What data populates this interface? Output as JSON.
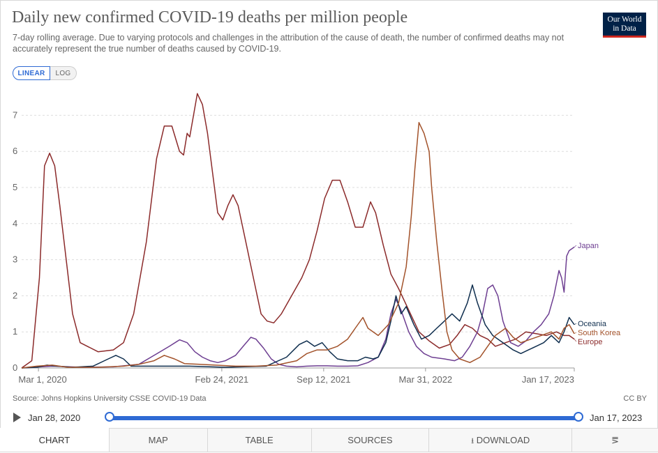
{
  "header": {
    "title": "Daily new confirmed COVID-19 deaths per million people",
    "subtitle": "7-day rolling average. Due to varying protocols and challenges in the attribution of the cause of death, the number of confirmed deaths may not accurately represent the true number of deaths caused by COVID-19.",
    "logo_line1": "Our World",
    "logo_line2": "in Data"
  },
  "scale_toggle": {
    "linear": "LINEAR",
    "log": "LOG"
  },
  "footer": {
    "source": "Source: Johns Hopkins University CSSE COVID-19 Data",
    "license": "CC BY"
  },
  "timeline": {
    "start": "Jan 28, 2020",
    "end": "Jan 17, 2023"
  },
  "tabs": [
    "CHART",
    "MAP",
    "TABLE",
    "SOURCES",
    "DOWNLOAD",
    "share"
  ],
  "colors": {
    "europe": "#8b2a2a",
    "japan": "#6d3e91",
    "oceania": "#0f2e4e",
    "south_korea": "#a2522a",
    "accent": "#2e6ad4"
  },
  "chart_data": {
    "type": "line",
    "title": "Daily new confirmed COVID-19 deaths per million people",
    "ylim": [
      0,
      7.5
    ],
    "yticks": [
      "0",
      "1",
      "2",
      "3",
      "4",
      "5",
      "6",
      "7"
    ],
    "x_range_days": [
      0,
      1085
    ],
    "xticks": [
      {
        "label": "Mar 1, 2020",
        "day": 33
      },
      {
        "label": "Feb 24, 2021",
        "day": 393
      },
      {
        "label": "Sep 12, 2021",
        "day": 593
      },
      {
        "label": "Mar 31, 2022",
        "day": 793
      },
      {
        "label": "Jan 17, 2023",
        "day": 1085
      }
    ],
    "series": [
      {
        "name": "Europe",
        "color": "#8b2a2a",
        "points": [
          [
            0,
            0
          ],
          [
            20,
            0.2
          ],
          [
            35,
            2.5
          ],
          [
            45,
            5.6
          ],
          [
            55,
            5.95
          ],
          [
            65,
            5.6
          ],
          [
            75,
            4.5
          ],
          [
            90,
            2.7
          ],
          [
            100,
            1.5
          ],
          [
            115,
            0.7
          ],
          [
            150,
            0.45
          ],
          [
            180,
            0.5
          ],
          [
            200,
            0.7
          ],
          [
            220,
            1.5
          ],
          [
            245,
            3.5
          ],
          [
            265,
            5.8
          ],
          [
            280,
            6.7
          ],
          [
            295,
            6.7
          ],
          [
            310,
            6.0
          ],
          [
            318,
            5.9
          ],
          [
            325,
            6.5
          ],
          [
            330,
            6.4
          ],
          [
            345,
            7.6
          ],
          [
            355,
            7.3
          ],
          [
            365,
            6.5
          ],
          [
            375,
            5.4
          ],
          [
            385,
            4.3
          ],
          [
            395,
            4.1
          ],
          [
            405,
            4.5
          ],
          [
            415,
            4.8
          ],
          [
            425,
            4.5
          ],
          [
            440,
            3.5
          ],
          [
            455,
            2.5
          ],
          [
            470,
            1.5
          ],
          [
            482,
            1.3
          ],
          [
            495,
            1.25
          ],
          [
            510,
            1.5
          ],
          [
            530,
            2.0
          ],
          [
            550,
            2.5
          ],
          [
            565,
            3.0
          ],
          [
            580,
            3.8
          ],
          [
            595,
            4.7
          ],
          [
            610,
            5.2
          ],
          [
            625,
            5.2
          ],
          [
            640,
            4.6
          ],
          [
            655,
            3.9
          ],
          [
            670,
            3.9
          ],
          [
            685,
            4.6
          ],
          [
            695,
            4.3
          ],
          [
            710,
            3.4
          ],
          [
            725,
            2.6
          ],
          [
            740,
            2.2
          ],
          [
            760,
            1.6
          ],
          [
            780,
            1.0
          ],
          [
            800,
            0.75
          ],
          [
            820,
            0.55
          ],
          [
            840,
            0.65
          ],
          [
            855,
            0.9
          ],
          [
            870,
            1.2
          ],
          [
            885,
            1.1
          ],
          [
            900,
            0.9
          ],
          [
            915,
            0.8
          ],
          [
            930,
            0.6
          ],
          [
            950,
            0.7
          ],
          [
            970,
            0.8
          ],
          [
            990,
            1.0
          ],
          [
            1010,
            0.95
          ],
          [
            1030,
            0.9
          ],
          [
            1050,
            1.0
          ],
          [
            1065,
            0.9
          ],
          [
            1075,
            0.9
          ],
          [
            1085,
            0.8
          ]
        ]
      },
      {
        "name": "Japan",
        "color": "#6d3e91",
        "points": [
          [
            0,
            0
          ],
          [
            60,
            0.05
          ],
          [
            120,
            0.02
          ],
          [
            180,
            0.03
          ],
          [
            230,
            0.1
          ],
          [
            260,
            0.35
          ],
          [
            290,
            0.6
          ],
          [
            310,
            0.78
          ],
          [
            325,
            0.7
          ],
          [
            340,
            0.45
          ],
          [
            355,
            0.3
          ],
          [
            370,
            0.2
          ],
          [
            385,
            0.15
          ],
          [
            400,
            0.2
          ],
          [
            420,
            0.35
          ],
          [
            435,
            0.6
          ],
          [
            450,
            0.85
          ],
          [
            460,
            0.8
          ],
          [
            475,
            0.55
          ],
          [
            490,
            0.25
          ],
          [
            505,
            0.1
          ],
          [
            520,
            0.05
          ],
          [
            540,
            0.03
          ],
          [
            560,
            0.05
          ],
          [
            580,
            0.06
          ],
          [
            600,
            0.06
          ],
          [
            620,
            0.05
          ],
          [
            640,
            0.05
          ],
          [
            660,
            0.06
          ],
          [
            680,
            0.15
          ],
          [
            700,
            0.3
          ],
          [
            715,
            0.8
          ],
          [
            725,
            1.5
          ],
          [
            735,
            1.9
          ],
          [
            745,
            1.6
          ],
          [
            760,
            1.0
          ],
          [
            775,
            0.6
          ],
          [
            790,
            0.4
          ],
          [
            805,
            0.3
          ],
          [
            830,
            0.25
          ],
          [
            850,
            0.2
          ],
          [
            865,
            0.3
          ],
          [
            880,
            0.6
          ],
          [
            895,
            1.0
          ],
          [
            905,
            1.5
          ],
          [
            915,
            2.2
          ],
          [
            925,
            2.3
          ],
          [
            935,
            2.0
          ],
          [
            945,
            1.3
          ],
          [
            960,
            0.7
          ],
          [
            975,
            0.6
          ],
          [
            990,
            0.75
          ],
          [
            1005,
            1.0
          ],
          [
            1020,
            1.2
          ],
          [
            1035,
            1.5
          ],
          [
            1045,
            2.0
          ],
          [
            1055,
            2.7
          ],
          [
            1060,
            2.5
          ],
          [
            1065,
            2.1
          ],
          [
            1070,
            3.1
          ],
          [
            1075,
            3.25
          ],
          [
            1085,
            3.35
          ]
        ]
      },
      {
        "name": "Oceania",
        "color": "#0f2e4e",
        "points": [
          [
            0,
            0
          ],
          [
            30,
            0.02
          ],
          [
            50,
            0.08
          ],
          [
            70,
            0.05
          ],
          [
            100,
            0.02
          ],
          [
            140,
            0.05
          ],
          [
            170,
            0.25
          ],
          [
            185,
            0.35
          ],
          [
            200,
            0.25
          ],
          [
            215,
            0.05
          ],
          [
            260,
            0.05
          ],
          [
            330,
            0.05
          ],
          [
            400,
            0.02
          ],
          [
            480,
            0.05
          ],
          [
            520,
            0.3
          ],
          [
            545,
            0.65
          ],
          [
            560,
            0.75
          ],
          [
            575,
            0.6
          ],
          [
            590,
            0.7
          ],
          [
            605,
            0.45
          ],
          [
            620,
            0.25
          ],
          [
            640,
            0.2
          ],
          [
            660,
            0.2
          ],
          [
            675,
            0.3
          ],
          [
            690,
            0.25
          ],
          [
            700,
            0.3
          ],
          [
            715,
            0.7
          ],
          [
            725,
            1.3
          ],
          [
            735,
            2.0
          ],
          [
            745,
            1.5
          ],
          [
            755,
            1.7
          ],
          [
            770,
            1.2
          ],
          [
            785,
            0.8
          ],
          [
            800,
            0.9
          ],
          [
            815,
            1.1
          ],
          [
            830,
            1.3
          ],
          [
            845,
            1.5
          ],
          [
            860,
            1.3
          ],
          [
            875,
            1.8
          ],
          [
            885,
            2.3
          ],
          [
            895,
            1.8
          ],
          [
            910,
            1.2
          ],
          [
            925,
            0.9
          ],
          [
            945,
            0.7
          ],
          [
            965,
            0.5
          ],
          [
            980,
            0.4
          ],
          [
            995,
            0.5
          ],
          [
            1010,
            0.6
          ],
          [
            1025,
            0.7
          ],
          [
            1040,
            0.9
          ],
          [
            1055,
            0.7
          ],
          [
            1065,
            1.0
          ],
          [
            1075,
            1.4
          ],
          [
            1085,
            1.2
          ]
        ]
      },
      {
        "name": "South Korea",
        "color": "#a2522a",
        "points": [
          [
            0,
            0
          ],
          [
            30,
            0.05
          ],
          [
            60,
            0.08
          ],
          [
            90,
            0.02
          ],
          [
            150,
            0.02
          ],
          [
            200,
            0.05
          ],
          [
            230,
            0.1
          ],
          [
            260,
            0.2
          ],
          [
            280,
            0.35
          ],
          [
            300,
            0.25
          ],
          [
            320,
            0.12
          ],
          [
            350,
            0.1
          ],
          [
            380,
            0.08
          ],
          [
            420,
            0.05
          ],
          [
            460,
            0.05
          ],
          [
            500,
            0.08
          ],
          [
            540,
            0.2
          ],
          [
            560,
            0.4
          ],
          [
            580,
            0.5
          ],
          [
            600,
            0.5
          ],
          [
            620,
            0.6
          ],
          [
            640,
            0.8
          ],
          [
            655,
            1.1
          ],
          [
            670,
            1.4
          ],
          [
            680,
            1.1
          ],
          [
            700,
            0.9
          ],
          [
            720,
            1.2
          ],
          [
            740,
            1.8
          ],
          [
            755,
            2.8
          ],
          [
            765,
            4.2
          ],
          [
            772,
            5.5
          ],
          [
            780,
            6.8
          ],
          [
            790,
            6.5
          ],
          [
            800,
            6.0
          ],
          [
            805,
            5.0
          ],
          [
            815,
            3.5
          ],
          [
            825,
            2.2
          ],
          [
            835,
            1.0
          ],
          [
            845,
            0.5
          ],
          [
            860,
            0.25
          ],
          [
            880,
            0.15
          ],
          [
            900,
            0.3
          ],
          [
            915,
            0.6
          ],
          [
            930,
            0.9
          ],
          [
            950,
            1.1
          ],
          [
            965,
            0.85
          ],
          [
            980,
            0.7
          ],
          [
            1000,
            0.8
          ],
          [
            1020,
            0.9
          ],
          [
            1040,
            1.0
          ],
          [
            1055,
            0.8
          ],
          [
            1065,
            1.1
          ],
          [
            1075,
            1.2
          ],
          [
            1085,
            0.95
          ]
        ]
      }
    ]
  }
}
